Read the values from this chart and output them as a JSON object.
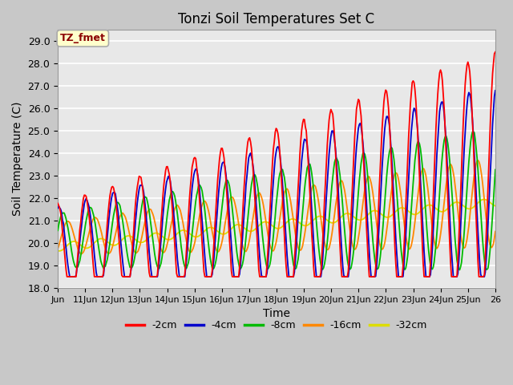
{
  "title": "Tonzi Soil Temperatures Set C",
  "xlabel": "Time",
  "ylabel": "Soil Temperature (C)",
  "annotation_label": "TZ_fmet",
  "annotation_color": "#8B0000",
  "annotation_bg": "#FFFFCC",
  "annotation_border": "#AAAAAA",
  "ylim": [
    18.0,
    29.5
  ],
  "yticks": [
    18.0,
    19.0,
    20.0,
    21.0,
    22.0,
    23.0,
    24.0,
    25.0,
    26.0,
    27.0,
    28.0,
    29.0
  ],
  "xtick_labels": [
    "Jun",
    "11Jun",
    "12Jun",
    "13Jun",
    "14Jun",
    "15Jun",
    "16Jun",
    "17Jun",
    "18Jun",
    "19Jun",
    "20Jun",
    "21Jun",
    "22Jun",
    "23Jun",
    "24Jun",
    "25Jun",
    "26"
  ],
  "line_colors": [
    "#FF0000",
    "#0000CC",
    "#00BB00",
    "#FF8800",
    "#DDDD00"
  ],
  "line_labels": [
    "-2cm",
    "-4cm",
    "-8cm",
    "-16cm",
    "-32cm"
  ],
  "fig_bg": "#C8C8C8",
  "plot_bg": "#E8E8E8",
  "grid_color": "#FFFFFF",
  "n_points": 480,
  "start_day": 10.0,
  "end_day": 26.0,
  "figsize": [
    6.4,
    4.8
  ],
  "dpi": 100
}
